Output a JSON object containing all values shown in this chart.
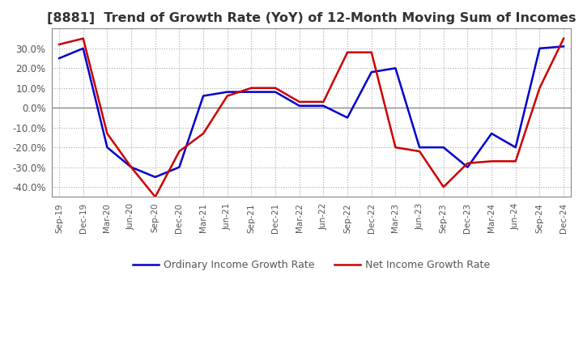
{
  "title": "[8881]  Trend of Growth Rate (YoY) of 12-Month Moving Sum of Incomes",
  "title_fontsize": 11.5,
  "ylim": [
    -45,
    40
  ],
  "yticks": [
    -40,
    -30,
    -20,
    -10,
    0,
    10,
    20,
    30
  ],
  "background_color": "#ffffff",
  "grid_color": "#aaaaaa",
  "x_labels": [
    "Sep-19",
    "Dec-19",
    "Mar-20",
    "Jun-20",
    "Sep-20",
    "Dec-20",
    "Mar-21",
    "Jun-21",
    "Sep-21",
    "Dec-21",
    "Mar-22",
    "Jun-22",
    "Sep-22",
    "Dec-22",
    "Mar-23",
    "Jun-23",
    "Sep-23",
    "Dec-23",
    "Mar-24",
    "Jun-24",
    "Sep-24",
    "Dec-24"
  ],
  "ordinary_income": [
    25,
    30,
    -20,
    -30,
    -35,
    -30,
    6,
    8,
    8,
    8,
    1,
    1,
    -5,
    18,
    20,
    -20,
    -20,
    -30,
    -13,
    -20,
    30,
    31
  ],
  "net_income": [
    32,
    35,
    -13,
    -30,
    -45,
    -22,
    -13,
    6,
    10,
    10,
    3,
    3,
    28,
    28,
    -20,
    -22,
    -40,
    -28,
    -27,
    -27,
    10,
    35
  ],
  "ordinary_color": "#0000cc",
  "net_color": "#cc0000",
  "line_width": 1.8,
  "legend_label_ordinary": "Ordinary Income Growth Rate",
  "legend_label_net": "Net Income Growth Rate"
}
